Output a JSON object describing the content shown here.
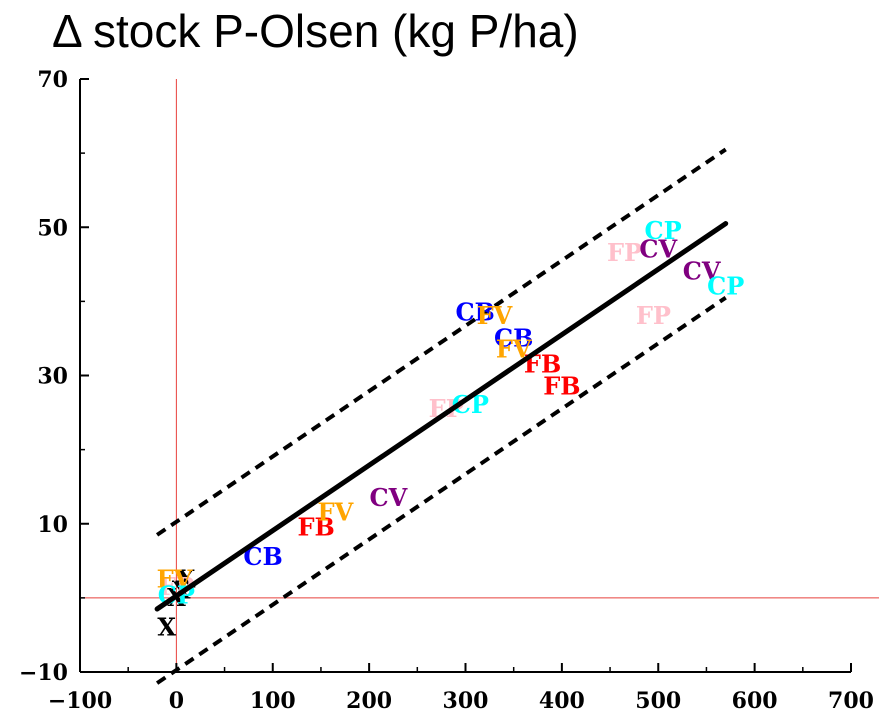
{
  "chart_data": {
    "type": "scatter",
    "title": "Δ stock P-Olsen (kg P/ha)",
    "xlabel": "",
    "ylabel": "",
    "xlim": [
      -100,
      700
    ],
    "ylim": [
      -10,
      70
    ],
    "x_ticks": [
      -100,
      0,
      100,
      200,
      300,
      400,
      500,
      600,
      700
    ],
    "x_tick_labels": [
      "−100",
      "0",
      "100",
      "200",
      "300",
      "400",
      "500",
      "600",
      "700"
    ],
    "y_ticks": [
      -10,
      10,
      30,
      50,
      70
    ],
    "y_tick_labels": [
      "−10",
      "10",
      "30",
      "50",
      "70"
    ],
    "reference_lines": {
      "x": 0,
      "y": 0,
      "color": "#e8413c"
    },
    "fit_line": {
      "x": [
        -20,
        570
      ],
      "y": [
        -1.5,
        50.5
      ],
      "style": "solid",
      "color": "#000000"
    },
    "band_upper": {
      "x": [
        -20,
        570
      ],
      "y": [
        8.5,
        60.5
      ],
      "style": "dashed",
      "color": "#000000"
    },
    "band_lower": {
      "x": [
        -20,
        570
      ],
      "y": [
        -11.5,
        40.5
      ],
      "style": "dashed",
      "color": "#000000"
    },
    "label_colors": {
      "CB": "#0000ff",
      "CP": "#00ffff",
      "CV": "#800080",
      "FB": "#ff0000",
      "FP": "#ffc0cb",
      "FV": "#ffa500",
      "X": "#000000"
    },
    "points": [
      {
        "label": "X",
        "x": -10,
        "y": -4
      },
      {
        "label": "X",
        "x": 0,
        "y": 0
      },
      {
        "label": "X",
        "x": 5,
        "y": 1
      },
      {
        "label": "X",
        "x": 10,
        "y": 2.5
      },
      {
        "label": "FP",
        "x": 0,
        "y": 1.5
      },
      {
        "label": "FV",
        "x": -2,
        "y": 2.5
      },
      {
        "label": "CP",
        "x": 0,
        "y": 0.3
      },
      {
        "label": "CB",
        "x": 90,
        "y": 5.5
      },
      {
        "label": "FB",
        "x": 145,
        "y": 9.5
      },
      {
        "label": "FV",
        "x": 165,
        "y": 11.5
      },
      {
        "label": "CV",
        "x": 220,
        "y": 13.5
      },
      {
        "label": "FP",
        "x": 280,
        "y": 25.5
      },
      {
        "label": "CP",
        "x": 305,
        "y": 26
      },
      {
        "label": "CB",
        "x": 310,
        "y": 38.5
      },
      {
        "label": "FV",
        "x": 330,
        "y": 38
      },
      {
        "label": "CB",
        "x": 350,
        "y": 35
      },
      {
        "label": "FV",
        "x": 350,
        "y": 33.5
      },
      {
        "label": "FB",
        "x": 380,
        "y": 31.5
      },
      {
        "label": "FB",
        "x": 400,
        "y": 28.5
      },
      {
        "label": "FP",
        "x": 465,
        "y": 46.5
      },
      {
        "label": "CP",
        "x": 505,
        "y": 49.5
      },
      {
        "label": "CV",
        "x": 500,
        "y": 47
      },
      {
        "label": "FP",
        "x": 495,
        "y": 38
      },
      {
        "label": "CV",
        "x": 545,
        "y": 44
      },
      {
        "label": "CP",
        "x": 570,
        "y": 42
      }
    ]
  }
}
